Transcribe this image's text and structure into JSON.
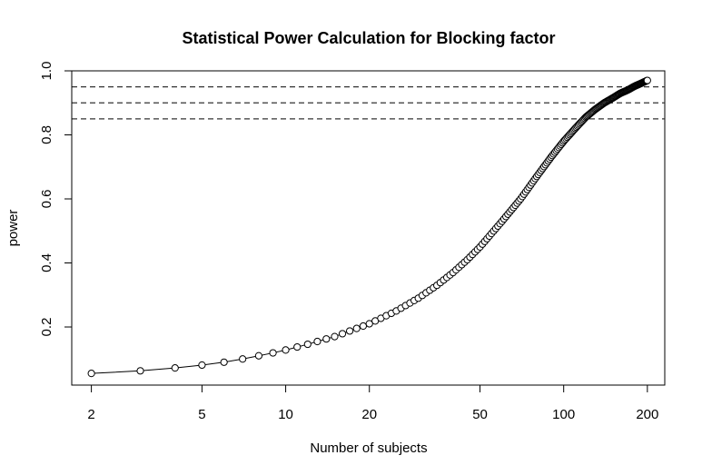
{
  "chart_data": {
    "type": "scatter",
    "title": "Statistical Power Calculation for Blocking factor",
    "xlabel": "Number of subjects",
    "ylabel": "power",
    "x_scale": "log",
    "xlim": [
      1.7,
      231
    ],
    "ylim": [
      0.0185,
      1.0
    ],
    "x_ticks": [
      2,
      5,
      10,
      20,
      50,
      100,
      200
    ],
    "x_tick_labels": [
      "2",
      "5",
      "10",
      "20",
      "50",
      "100",
      "200"
    ],
    "y_ticks": [
      0.2,
      0.4,
      0.6,
      0.8,
      1.0
    ],
    "y_tick_labels": [
      "0.2",
      "0.4",
      "0.6",
      "0.8",
      "1.0"
    ],
    "reference_lines": [
      0.85,
      0.9,
      0.95
    ],
    "x_range": [
      2,
      200
    ],
    "marker": "open-circle",
    "connected": true,
    "points": [
      [
        2,
        0.055
      ],
      [
        3,
        0.063
      ],
      [
        4,
        0.072
      ],
      [
        5,
        0.081
      ],
      [
        6,
        0.09
      ],
      [
        7,
        0.1
      ],
      [
        8,
        0.11
      ],
      [
        9,
        0.119
      ],
      [
        10,
        0.128
      ],
      [
        12,
        0.146
      ],
      [
        15,
        0.17
      ],
      [
        20,
        0.21
      ],
      [
        25,
        0.25
      ],
      [
        30,
        0.29
      ],
      [
        35,
        0.33
      ],
      [
        40,
        0.37
      ],
      [
        45,
        0.41
      ],
      [
        50,
        0.45
      ],
      [
        60,
        0.53
      ],
      [
        70,
        0.6
      ],
      [
        80,
        0.67
      ],
      [
        90,
        0.73
      ],
      [
        100,
        0.78
      ],
      [
        110,
        0.82
      ],
      [
        120,
        0.855
      ],
      [
        130,
        0.88
      ],
      [
        140,
        0.9
      ],
      [
        150,
        0.915
      ],
      [
        160,
        0.93
      ],
      [
        170,
        0.94
      ],
      [
        180,
        0.952
      ],
      [
        190,
        0.961
      ],
      [
        200,
        0.97
      ]
    ],
    "grid": false,
    "legend": "none"
  }
}
